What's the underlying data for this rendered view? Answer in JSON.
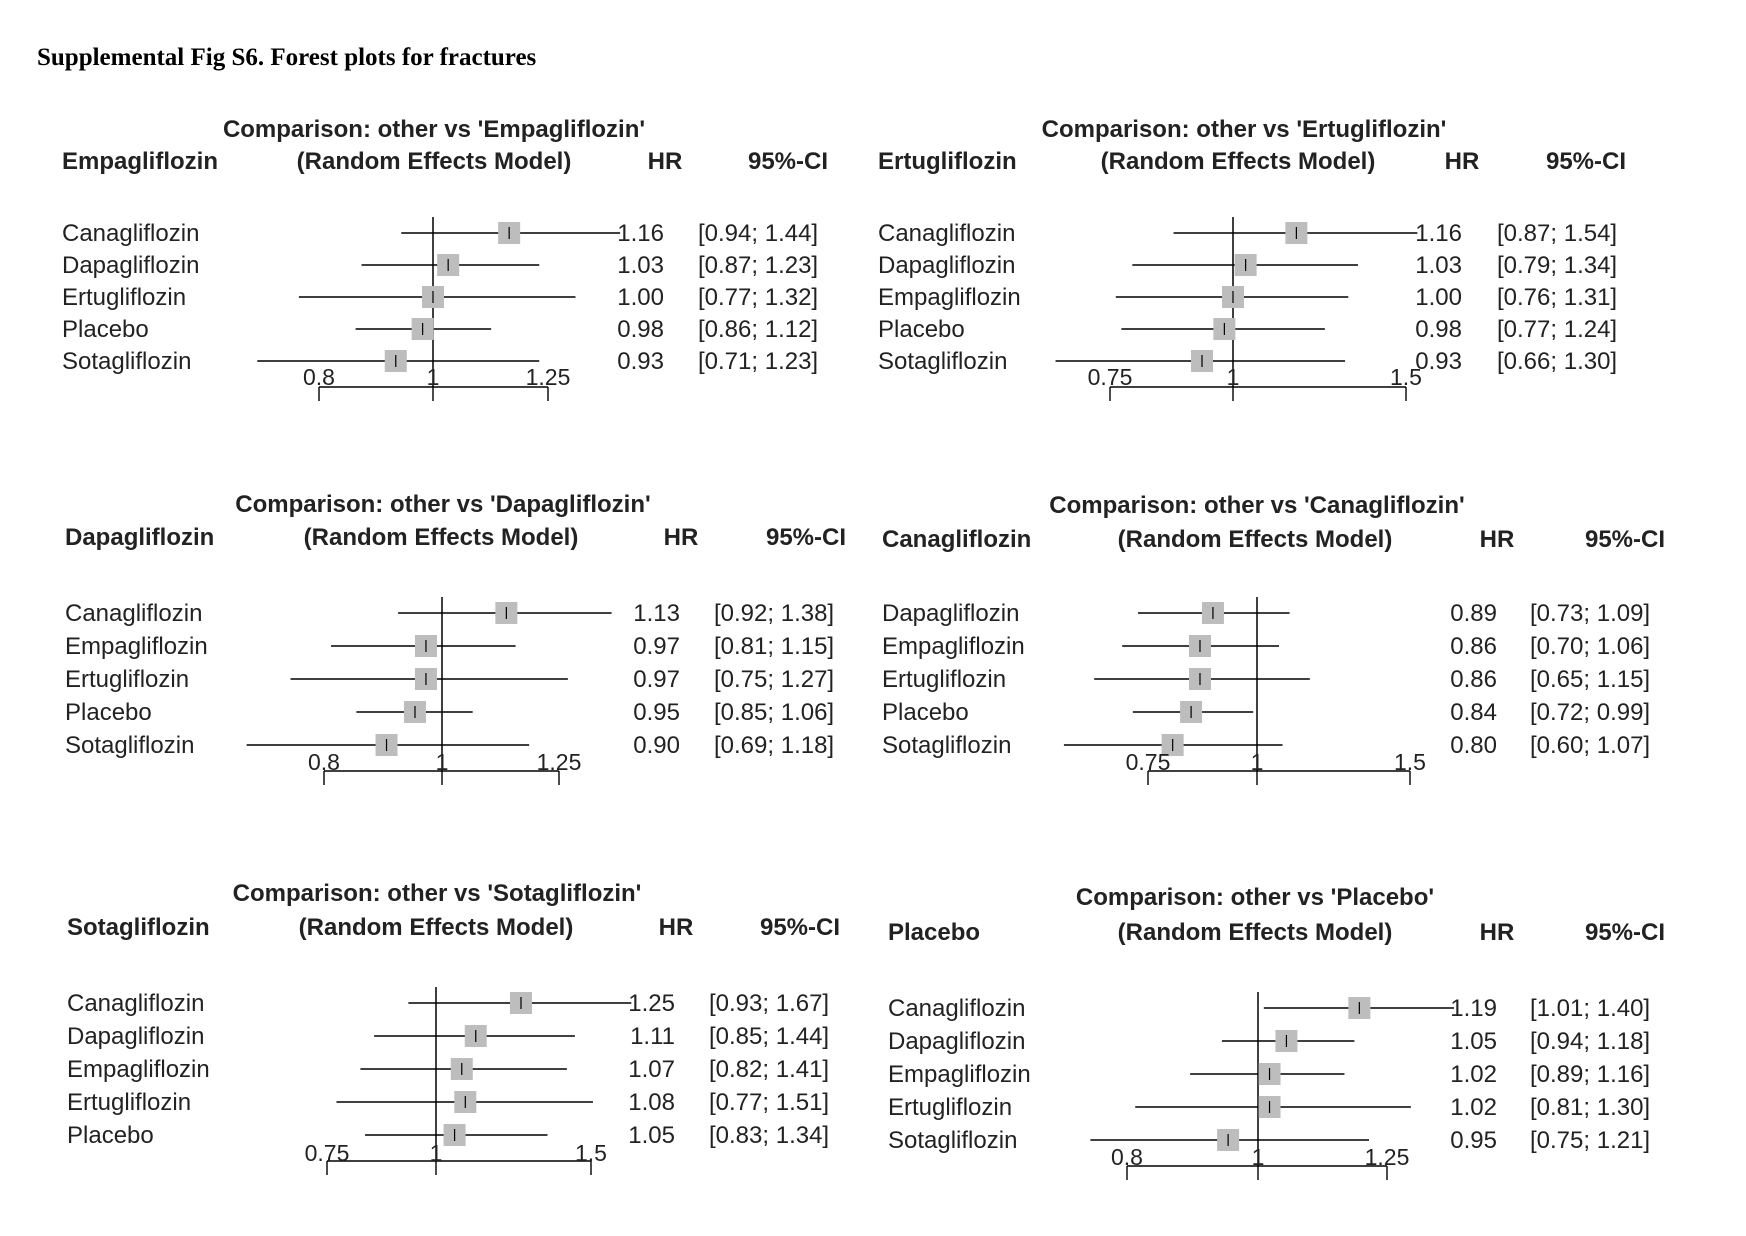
{
  "figure_title": "Supplemental Fig S6. Forest plots for fractures",
  "colors": {
    "box": "#bdbdbd",
    "line": "#000000",
    "text": "#222222"
  },
  "chart_data": [
    {
      "type": "forest",
      "title": "Comparison: other vs 'Empagliflozin'",
      "reference": "Empagliflozin",
      "model_label": "(Random Effects Model)",
      "col_hr": "HR",
      "col_ci": "95%-CI",
      "scale": "log",
      "ticks": [
        "0.8",
        "1",
        "1.25"
      ],
      "rows": [
        {
          "label": "Canagliflozin",
          "hr": 1.16,
          "lo": 0.94,
          "hi": 1.44,
          "hr_text": "1.16",
          "ci_text": "[0.94; 1.44]"
        },
        {
          "label": "Dapagliflozin",
          "hr": 1.03,
          "lo": 0.87,
          "hi": 1.23,
          "hr_text": "1.03",
          "ci_text": "[0.87; 1.23]"
        },
        {
          "label": "Ertugliflozin",
          "hr": 1.0,
          "lo": 0.77,
          "hi": 1.32,
          "hr_text": "1.00",
          "ci_text": "[0.77; 1.32]"
        },
        {
          "label": "Placebo",
          "hr": 0.98,
          "lo": 0.86,
          "hi": 1.12,
          "hr_text": "0.98",
          "ci_text": "[0.86; 1.12]"
        },
        {
          "label": "Sotagliflozin",
          "hr": 0.93,
          "lo": 0.71,
          "hi": 1.23,
          "hr_text": "0.93",
          "ci_text": "[0.71; 1.23]"
        }
      ]
    },
    {
      "type": "forest",
      "title": "Comparison: other vs 'Ertugliflozin'",
      "reference": "Ertugliflozin",
      "model_label": "(Random Effects Model)",
      "col_hr": "HR",
      "col_ci": "95%-CI",
      "scale": "log",
      "ticks": [
        "0.75",
        "1",
        "1.5"
      ],
      "rows": [
        {
          "label": "Canagliflozin",
          "hr": 1.16,
          "lo": 0.87,
          "hi": 1.54,
          "hr_text": "1.16",
          "ci_text": "[0.87; 1.54]"
        },
        {
          "label": "Dapagliflozin",
          "hr": 1.03,
          "lo": 0.79,
          "hi": 1.34,
          "hr_text": "1.03",
          "ci_text": "[0.79; 1.34]"
        },
        {
          "label": "Empagliflozin",
          "hr": 1.0,
          "lo": 0.76,
          "hi": 1.31,
          "hr_text": "1.00",
          "ci_text": "[0.76; 1.31]"
        },
        {
          "label": "Placebo",
          "hr": 0.98,
          "lo": 0.77,
          "hi": 1.24,
          "hr_text": "0.98",
          "ci_text": "[0.77; 1.24]"
        },
        {
          "label": "Sotagliflozin",
          "hr": 0.93,
          "lo": 0.66,
          "hi": 1.3,
          "hr_text": "0.93",
          "ci_text": "[0.66; 1.30]"
        }
      ]
    },
    {
      "type": "forest",
      "title": "Comparison: other vs 'Dapagliflozin'",
      "reference": "Dapagliflozin",
      "model_label": "(Random Effects Model)",
      "col_hr": "HR",
      "col_ci": "95%-CI",
      "scale": "log",
      "ticks": [
        "0.8",
        "1",
        "1.25"
      ],
      "rows": [
        {
          "label": "Canagliflozin",
          "hr": 1.13,
          "lo": 0.92,
          "hi": 1.38,
          "hr_text": "1.13",
          "ci_text": "[0.92; 1.38]"
        },
        {
          "label": "Empagliflozin",
          "hr": 0.97,
          "lo": 0.81,
          "hi": 1.15,
          "hr_text": "0.97",
          "ci_text": "[0.81; 1.15]"
        },
        {
          "label": "Ertugliflozin",
          "hr": 0.97,
          "lo": 0.75,
          "hi": 1.27,
          "hr_text": "0.97",
          "ci_text": "[0.75; 1.27]"
        },
        {
          "label": "Placebo",
          "hr": 0.95,
          "lo": 0.85,
          "hi": 1.06,
          "hr_text": "0.95",
          "ci_text": "[0.85; 1.06]"
        },
        {
          "label": "Sotagliflozin",
          "hr": 0.9,
          "lo": 0.69,
          "hi": 1.18,
          "hr_text": "0.90",
          "ci_text": "[0.69; 1.18]"
        }
      ]
    },
    {
      "type": "forest",
      "title": "Comparison: other vs 'Canagliflozin'",
      "reference": "Canagliflozin",
      "model_label": "(Random Effects Model)",
      "col_hr": "HR",
      "col_ci": "95%-CI",
      "scale": "log",
      "ticks": [
        "0.75",
        "1",
        "1.5"
      ],
      "rows": [
        {
          "label": "Dapagliflozin",
          "hr": 0.89,
          "lo": 0.73,
          "hi": 1.09,
          "hr_text": "0.89",
          "ci_text": "[0.73; 1.09]"
        },
        {
          "label": "Empagliflozin",
          "hr": 0.86,
          "lo": 0.7,
          "hi": 1.06,
          "hr_text": "0.86",
          "ci_text": "[0.70; 1.06]"
        },
        {
          "label": "Ertugliflozin",
          "hr": 0.86,
          "lo": 0.65,
          "hi": 1.15,
          "hr_text": "0.86",
          "ci_text": "[0.65; 1.15]"
        },
        {
          "label": "Placebo",
          "hr": 0.84,
          "lo": 0.72,
          "hi": 0.99,
          "hr_text": "0.84",
          "ci_text": "[0.72; 0.99]"
        },
        {
          "label": "Sotagliflozin",
          "hr": 0.8,
          "lo": 0.6,
          "hi": 1.07,
          "hr_text": "0.80",
          "ci_text": "[0.60; 1.07]"
        }
      ]
    },
    {
      "type": "forest",
      "title": "Comparison: other vs 'Sotagliflozin'",
      "reference": "Sotagliflozin",
      "model_label": "(Random Effects Model)",
      "col_hr": "HR",
      "col_ci": "95%-CI",
      "scale": "log",
      "ticks": [
        "0.75",
        "1",
        "1.5"
      ],
      "rows": [
        {
          "label": "Canagliflozin",
          "hr": 1.25,
          "lo": 0.93,
          "hi": 1.67,
          "hr_text": "1.25",
          "ci_text": "[0.93; 1.67]"
        },
        {
          "label": "Dapagliflozin",
          "hr": 1.11,
          "lo": 0.85,
          "hi": 1.44,
          "hr_text": "1.11",
          "ci_text": "[0.85; 1.44]"
        },
        {
          "label": "Empagliflozin",
          "hr": 1.07,
          "lo": 0.82,
          "hi": 1.41,
          "hr_text": "1.07",
          "ci_text": "[0.82; 1.41]"
        },
        {
          "label": "Ertugliflozin",
          "hr": 1.08,
          "lo": 0.77,
          "hi": 1.51,
          "hr_text": "1.08",
          "ci_text": "[0.77; 1.51]"
        },
        {
          "label": "Placebo",
          "hr": 1.05,
          "lo": 0.83,
          "hi": 1.34,
          "hr_text": "1.05",
          "ci_text": "[0.83; 1.34]"
        }
      ]
    },
    {
      "type": "forest",
      "title": "Comparison: other vs 'Placebo'",
      "reference": "Placebo",
      "model_label": "(Random Effects Model)",
      "col_hr": "HR",
      "col_ci": "95%-CI",
      "scale": "log",
      "ticks": [
        "0.8",
        "1",
        "1.25"
      ],
      "rows": [
        {
          "label": "Canagliflozin",
          "hr": 1.19,
          "lo": 1.01,
          "hi": 1.4,
          "hr_text": "1.19",
          "ci_text": "[1.01; 1.40]"
        },
        {
          "label": "Dapagliflozin",
          "hr": 1.05,
          "lo": 0.94,
          "hi": 1.18,
          "hr_text": "1.05",
          "ci_text": "[0.94; 1.18]"
        },
        {
          "label": "Empagliflozin",
          "hr": 1.02,
          "lo": 0.89,
          "hi": 1.16,
          "hr_text": "1.02",
          "ci_text": "[0.89; 1.16]"
        },
        {
          "label": "Ertugliflozin",
          "hr": 1.02,
          "lo": 0.81,
          "hi": 1.3,
          "hr_text": "1.02",
          "ci_text": "[0.81; 1.30]"
        },
        {
          "label": "Sotagliflozin",
          "hr": 0.95,
          "lo": 0.75,
          "hi": 1.21,
          "hr_text": "0.95",
          "ci_text": "[0.75; 1.21]"
        }
      ]
    }
  ]
}
